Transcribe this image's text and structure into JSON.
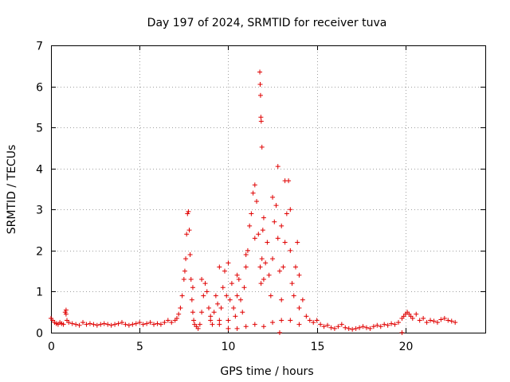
{
  "chart_data": {
    "type": "scatter",
    "title": "Day 197 of 2024, SRMTID for receiver tuva",
    "xlabel": "GPS time / hours",
    "ylabel": "SRMTID / TECUs",
    "xlim": [
      0,
      24.5
    ],
    "ylim": [
      0,
      7
    ],
    "xticks": [
      0,
      5,
      10,
      15,
      20
    ],
    "yticks": [
      0,
      1,
      2,
      3,
      4,
      5,
      6,
      7
    ],
    "grid": true,
    "marker": "+",
    "color": "#e00000",
    "series": [
      {
        "name": "SRMTID",
        "x": [
          0.0,
          0.1,
          0.2,
          0.3,
          0.4,
          0.5,
          0.6,
          0.7,
          0.8,
          0.85,
          0.9,
          1.0,
          1.2,
          1.4,
          1.6,
          1.8,
          2.0,
          2.2,
          2.4,
          2.6,
          2.8,
          3.0,
          3.2,
          3.4,
          3.6,
          3.8,
          4.0,
          4.2,
          4.4,
          4.6,
          4.8,
          5.0,
          5.2,
          5.4,
          5.6,
          5.8,
          6.0,
          6.2,
          6.4,
          6.6,
          6.8,
          7.0,
          7.1,
          7.2,
          7.3,
          7.4,
          7.5,
          7.55,
          7.6,
          7.65,
          7.7,
          7.75,
          7.8,
          7.85,
          7.9,
          7.95,
          8.0,
          8.05,
          8.1,
          8.2,
          8.3,
          8.4,
          8.5,
          8.6,
          8.7,
          8.8,
          8.9,
          9.0,
          9.1,
          9.2,
          9.3,
          9.4,
          9.5,
          9.6,
          9.7,
          9.8,
          9.9,
          10.0,
          10.1,
          10.2,
          10.3,
          10.4,
          10.5,
          10.6,
          10.7,
          10.8,
          10.9,
          11.0,
          11.1,
          11.2,
          11.3,
          11.4,
          11.5,
          11.6,
          11.7,
          11.8,
          11.85,
          11.9,
          11.95,
          12.0,
          12.1,
          12.2,
          12.3,
          12.4,
          12.5,
          12.6,
          12.7,
          12.8,
          12.9,
          13.0,
          13.1,
          13.2,
          13.3,
          13.4,
          13.5,
          13.6,
          13.7,
          13.8,
          13.9,
          14.0,
          14.2,
          14.4,
          14.6,
          14.8,
          15.0,
          15.2,
          15.4,
          15.6,
          15.8,
          16.0,
          16.2,
          16.4,
          16.6,
          16.8,
          17.0,
          17.2,
          17.4,
          17.6,
          17.8,
          18.0,
          18.2,
          18.4,
          18.6,
          18.8,
          19.0,
          19.2,
          19.4,
          19.6,
          19.8,
          19.9,
          20.0,
          20.1,
          20.2,
          20.3,
          20.4,
          20.6,
          20.8,
          21.0,
          21.2,
          21.4,
          21.6,
          21.8,
          22.0,
          22.2,
          22.4,
          22.6,
          22.8,
          11.78,
          11.8,
          11.82,
          11.84,
          11.86,
          11.9,
          12.8,
          13.2,
          9.5,
          10.0,
          10.5,
          11.0,
          11.5,
          12.0,
          12.5,
          13.0,
          13.5,
          14.0,
          8.0,
          8.5,
          9.0,
          9.5,
          10.0,
          10.5,
          11.0,
          11.5,
          12.0,
          12.5,
          13.0,
          13.5,
          14.0,
          0.85,
          12.9,
          19.8
        ],
        "y": [
          0.35,
          0.3,
          0.25,
          0.22,
          0.2,
          0.25,
          0.22,
          0.2,
          0.5,
          0.55,
          0.3,
          0.25,
          0.22,
          0.2,
          0.18,
          0.25,
          0.2,
          0.22,
          0.2,
          0.18,
          0.2,
          0.22,
          0.2,
          0.18,
          0.2,
          0.22,
          0.25,
          0.2,
          0.18,
          0.2,
          0.22,
          0.25,
          0.2,
          0.22,
          0.25,
          0.2,
          0.22,
          0.2,
          0.25,
          0.3,
          0.25,
          0.3,
          0.35,
          0.45,
          0.6,
          0.9,
          1.3,
          1.5,
          1.8,
          2.4,
          2.9,
          2.95,
          2.5,
          1.9,
          1.3,
          0.8,
          0.5,
          0.3,
          0.2,
          0.15,
          0.1,
          0.2,
          0.5,
          0.9,
          1.2,
          1.0,
          0.6,
          0.3,
          0.2,
          0.5,
          0.9,
          0.7,
          0.3,
          0.6,
          1.1,
          1.5,
          0.9,
          0.3,
          0.8,
          1.2,
          0.6,
          0.4,
          0.9,
          1.3,
          0.8,
          0.5,
          1.1,
          1.6,
          2.0,
          2.6,
          2.9,
          3.4,
          3.6,
          3.2,
          2.4,
          1.6,
          1.2,
          1.8,
          2.5,
          1.3,
          1.7,
          2.2,
          1.4,
          0.9,
          1.8,
          2.7,
          3.1,
          2.3,
          1.5,
          0.8,
          1.6,
          2.2,
          2.9,
          3.7,
          2.0,
          1.2,
          0.9,
          1.6,
          2.2,
          1.4,
          0.8,
          0.4,
          0.3,
          0.25,
          0.3,
          0.2,
          0.15,
          0.18,
          0.12,
          0.1,
          0.15,
          0.2,
          0.12,
          0.1,
          0.08,
          0.1,
          0.12,
          0.15,
          0.12,
          0.1,
          0.15,
          0.18,
          0.15,
          0.2,
          0.18,
          0.22,
          0.2,
          0.25,
          0.35,
          0.4,
          0.45,
          0.5,
          0.45,
          0.4,
          0.35,
          0.45,
          0.3,
          0.35,
          0.25,
          0.3,
          0.28,
          0.25,
          0.32,
          0.35,
          0.3,
          0.28,
          0.25,
          6.35,
          6.05,
          5.78,
          5.25,
          5.15,
          4.52,
          4.05,
          3.7,
          0.2,
          0.1,
          0.1,
          0.15,
          0.2,
          0.15,
          0.25,
          0.3,
          0.3,
          0.2,
          1.1,
          1.3,
          0.4,
          1.6,
          1.7,
          1.4,
          1.9,
          2.3,
          2.8,
          3.3,
          2.6,
          3.0,
          0.6,
          0.45,
          0.0,
          0.0
        ]
      }
    ]
  }
}
